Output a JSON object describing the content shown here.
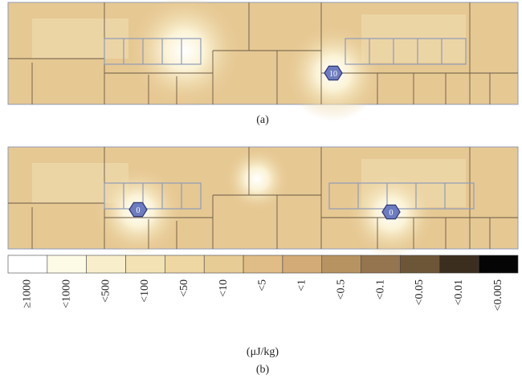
{
  "panels": [
    {
      "label": "(a)",
      "markers": [
        "10"
      ]
    },
    {
      "label": "(b)",
      "markers": [
        "0",
        "0"
      ]
    }
  ],
  "legend": {
    "unit": "(μJ/kg)",
    "items": [
      {
        "label": "≥1000",
        "color": "#ffffff"
      },
      {
        "label": "<1000",
        "color": "#fdfbe6"
      },
      {
        "label": "<500",
        "color": "#f8eecb"
      },
      {
        "label": "<100",
        "color": "#f3e2b3"
      },
      {
        "label": "<50",
        "color": "#eed7a2"
      },
      {
        "label": "<10",
        "color": "#e8cc95"
      },
      {
        "label": "<5",
        "color": "#e0bd86"
      },
      {
        "label": "<1",
        "color": "#d2ab76"
      },
      {
        "label": "<0.5",
        "color": "#b79362"
      },
      {
        "label": "<0.1",
        "color": "#94754f"
      },
      {
        "label": "<0.05",
        "color": "#6d5638"
      },
      {
        "label": "<0.01",
        "color": "#3b2e1e"
      },
      {
        "label": "<0.005",
        "color": "#050505"
      }
    ]
  }
}
